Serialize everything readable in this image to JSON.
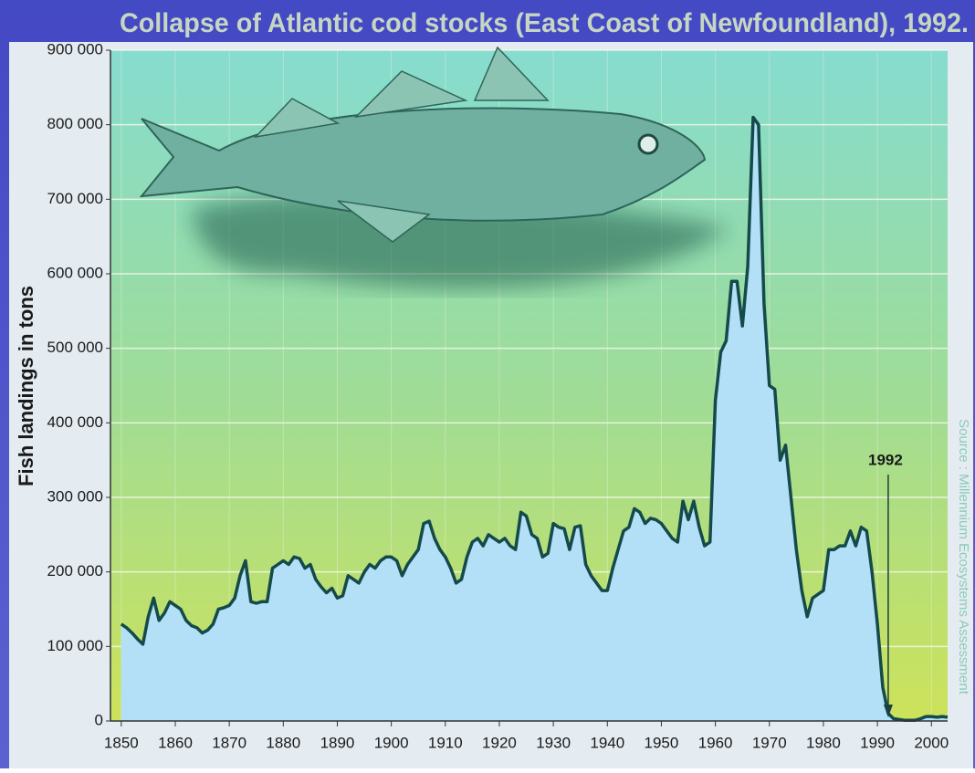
{
  "chart_data": {
    "type": "area",
    "title": "Collapse of Atlantic cod stocks (East Coast of Newfoundland), 1992.",
    "y_label": "Fish landings in tons",
    "source": "Source : Millennium Ecosystems Assessment",
    "annotation": {
      "label": "1992",
      "x": 1992
    },
    "series": [
      {
        "name": "Fish landings",
        "color": "#b3e0f7",
        "line_color": "#154a4a",
        "values": [
          130000,
          125000,
          118000,
          110000,
          103000,
          140000,
          165000,
          135000,
          145000,
          160000,
          155000,
          150000,
          135000,
          128000,
          125000,
          118000,
          122000,
          130000,
          150000,
          152000,
          155000,
          165000,
          195000,
          215000,
          160000,
          158000,
          160000,
          160000,
          205000,
          210000,
          215000,
          210000,
          220000,
          218000,
          205000,
          210000,
          190000,
          180000,
          172000,
          178000,
          165000,
          168000,
          195000,
          190000,
          185000,
          200000,
          210000,
          205000,
          215000,
          220000,
          220000,
          215000,
          195000,
          210000,
          220000,
          230000,
          265000,
          268000,
          245000,
          230000,
          220000,
          205000,
          185000,
          190000,
          220000,
          240000,
          245000,
          235000,
          250000,
          245000,
          240000,
          245000,
          235000,
          230000,
          280000,
          275000,
          250000,
          245000,
          220000,
          225000,
          265000,
          260000,
          258000,
          230000,
          260000,
          262000,
          210000,
          195000,
          185000,
          175000,
          175000,
          205000,
          230000,
          255000,
          260000,
          285000,
          280000,
          265000,
          272000,
          270000,
          265000,
          255000,
          245000,
          240000,
          295000,
          270000,
          295000,
          260000,
          235000,
          240000,
          430000,
          495000,
          510000,
          590000,
          590000,
          530000,
          610000,
          810000,
          800000,
          560000,
          450000,
          445000,
          350000,
          370000,
          300000,
          230000,
          175000,
          140000,
          165000,
          170000,
          175000,
          230000,
          230000,
          235000,
          235000,
          255000,
          235000,
          260000,
          255000,
          200000,
          130000,
          45000,
          10000,
          3000,
          2000,
          1000,
          1000,
          1000,
          3000,
          6000,
          6000,
          5000,
          6000,
          5000
        ]
      }
    ],
    "x": [
      1850,
      1851,
      1852,
      1853,
      1854,
      1855,
      1856,
      1857,
      1858,
      1859,
      1860,
      1861,
      1862,
      1863,
      1864,
      1865,
      1866,
      1867,
      1868,
      1869,
      1870,
      1871,
      1872,
      1873,
      1874,
      1875,
      1876,
      1877,
      1878,
      1879,
      1880,
      1881,
      1882,
      1883,
      1884,
      1885,
      1886,
      1887,
      1888,
      1889,
      1890,
      1891,
      1892,
      1893,
      1894,
      1895,
      1896,
      1897,
      1898,
      1899,
      1900,
      1901,
      1902,
      1903,
      1904,
      1905,
      1906,
      1907,
      1908,
      1909,
      1910,
      1911,
      1912,
      1913,
      1914,
      1915,
      1916,
      1917,
      1918,
      1919,
      1920,
      1921,
      1922,
      1923,
      1924,
      1925,
      1926,
      1927,
      1928,
      1929,
      1930,
      1931,
      1932,
      1933,
      1934,
      1935,
      1936,
      1937,
      1938,
      1939,
      1940,
      1941,
      1942,
      1943,
      1944,
      1945,
      1946,
      1947,
      1948,
      1949,
      1950,
      1951,
      1952,
      1953,
      1954,
      1955,
      1956,
      1957,
      1958,
      1959,
      1960,
      1961,
      1962,
      1963,
      1964,
      1965,
      1966,
      1967,
      1968,
      1969,
      1970,
      1971,
      1972,
      1973,
      1974,
      1975,
      1976,
      1977,
      1978,
      1979,
      1980,
      1981,
      1982,
      1983,
      1984,
      1985,
      1986,
      1987,
      1988,
      1989,
      1990,
      1991,
      1992,
      1993,
      1994,
      1995,
      1996,
      1997,
      1998,
      1999,
      2000,
      2001,
      2002,
      2003
    ],
    "xlim": [
      1848,
      2003
    ],
    "xticks": [
      1850,
      1860,
      1870,
      1880,
      1890,
      1900,
      1910,
      1920,
      1930,
      1940,
      1950,
      1960,
      1970,
      1980,
      1990,
      2000
    ],
    "ylim": [
      0,
      900000
    ],
    "yticks": [
      0,
      {
        "value": 100000,
        "label": "100 000"
      },
      {
        "value": 200000,
        "label": "200 000"
      },
      {
        "value": 300000,
        "label": "300 000"
      },
      {
        "value": 400000,
        "label": "400 000"
      },
      {
        "value": 500000,
        "label": "500 000"
      },
      {
        "value": 600000,
        "label": "600 000"
      },
      {
        "value": 700000,
        "label": "700 000"
      },
      {
        "value": 800000,
        "label": "800 000"
      },
      {
        "value": 900000,
        "label": "900 000"
      }
    ],
    "grid": true
  }
}
